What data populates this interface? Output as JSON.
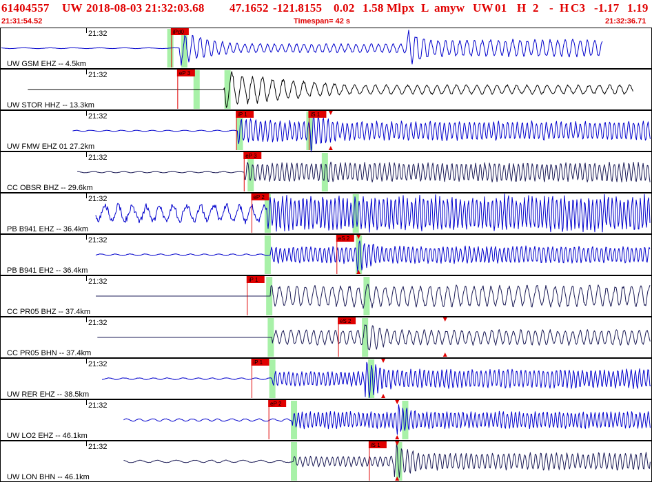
{
  "header": {
    "event_id": "61404557",
    "network": "UW",
    "datetime": "2018-08-03 21:32:03.68",
    "lat": "47.1652",
    "lon": "-121.8155",
    "depth": "0.02",
    "magnitude": "1.58 Ml",
    "src": "px",
    "type": "L",
    "author": "amyw",
    "auth_net": "UW",
    "ver": "01",
    "gt": "H",
    "nph": "2",
    "dash": "-",
    "sel": "H",
    "qual": "C3",
    "val1": "-1.17",
    "val2": "1.19"
  },
  "subheader": {
    "start_time": "21:31:54.52",
    "timespan": "Timespan=  42 s",
    "end_time": "21:32:36.71"
  },
  "colors": {
    "header": "#e00000",
    "trace_blue": "#0000cc",
    "trace_dark": "#1a1a55",
    "trace_black": "#000000",
    "pick_box": "#e00000",
    "window": "#9ef09e",
    "tick": "#e00000"
  },
  "chart_data": {
    "type": "line",
    "title": "",
    "xlabel": "",
    "ylabel": "",
    "xlim": [
      0,
      42.19
    ],
    "x_unit": "s after 21:31:54.52",
    "tick_label": "21:32",
    "traces": [
      {
        "label": "UW GSM EHZ -- 4.5km",
        "time_label": "21:32",
        "color": "#0000cc",
        "start": 0.0,
        "end": 39.0,
        "onset": 11.6,
        "amp": 0.85,
        "freq": 1.3,
        "decay": 0.25,
        "noise": 0.02,
        "secondary": 26.3,
        "sec_amp": 0.9,
        "picks": [
          {
            "label": "iPd0",
            "t": 11.1
          }
        ],
        "windows": [
          11.0,
          11.9
        ],
        "ticks": []
      },
      {
        "label": "UW STOR HHZ -- 13.3km",
        "time_label": "21:32",
        "color": "#000000",
        "start": 1.8,
        "end": 41.0,
        "onset": 14.5,
        "amp": 0.9,
        "freq": 0.95,
        "decay": 0.12,
        "noise": 0.0,
        "secondary": 0,
        "sec_amp": 0,
        "picks": [
          {
            "label": "eP 3",
            "t": 11.5
          }
        ],
        "windows": [
          12.7,
          14.7
        ],
        "ticks": []
      },
      {
        "label": "UW FMW EHZ 01 27.2km",
        "time_label": "21:32",
        "color": "#0000cc",
        "start": 4.7,
        "end": 43.7,
        "onset": 15.4,
        "amp": 0.6,
        "freq": 2.0,
        "decay": 0.04,
        "noise": 0.03,
        "secondary": 20.1,
        "sec_amp": 1.0,
        "picks": [
          {
            "label": "iP 1",
            "t": 15.3
          },
          {
            "label": "iS 1",
            "t": 20.0
          }
        ],
        "windows": [
          15.5,
          20.0
        ],
        "ticks": [
          21.4
        ]
      },
      {
        "label": "CC OBSR BHZ -- 29.6km",
        "time_label": "21:32",
        "color": "#1a1a55",
        "start": 5.0,
        "end": 44.0,
        "onset": 15.8,
        "amp": 0.45,
        "freq": 2.0,
        "decay": 0.0,
        "noise": 0.03,
        "secondary": 21.2,
        "sec_amp": 0.6,
        "picks": [
          {
            "label": "eP 3",
            "t": 15.8
          }
        ],
        "windows": [
          16.2,
          21.0
        ],
        "ticks": []
      },
      {
        "label": "PB B941 EHZ -- 36.4km",
        "time_label": "21:32",
        "color": "#0000cc",
        "start": 6.2,
        "end": 45.5,
        "onset": 17.3,
        "amp": 0.8,
        "freq": 2.4,
        "decay": 0.0,
        "noise": 0.4,
        "secondary": 23.0,
        "sec_amp": 0.8,
        "picks": [
          {
            "label": "eP 2",
            "t": 16.3
          }
        ],
        "windows": [
          17.3,
          23.0
        ],
        "ticks": []
      },
      {
        "label": "PB B941 EH2 -- 36.4km",
        "time_label": "21:32",
        "color": "#0000cc",
        "start": 6.2,
        "end": 45.5,
        "onset": 17.5,
        "amp": 0.4,
        "freq": 2.2,
        "decay": 0.0,
        "noise": 0.04,
        "secondary": 23.1,
        "sec_amp": 0.9,
        "picks": [
          {
            "label": "eS 2",
            "t": 21.8
          }
        ],
        "windows": [
          17.3,
          23.2
        ],
        "ticks": [
          23.2
        ]
      },
      {
        "label": "CC PR05 BHZ -- 37.4km",
        "time_label": "21:32",
        "color": "#1a1a55",
        "start": 6.2,
        "end": 45.5,
        "onset": 17.5,
        "amp": 0.5,
        "freq": 1.1,
        "decay": 0.0,
        "noise": 0.0,
        "secondary": 23.5,
        "sec_amp": 0.7,
        "picks": [
          {
            "label": "iP 1",
            "t": 16.0
          }
        ],
        "windows": [
          17.4,
          23.7
        ],
        "ticks": []
      },
      {
        "label": "CC PR05 BHN -- 37.4km",
        "time_label": "21:32",
        "color": "#1a1a55",
        "start": 6.3,
        "end": 45.5,
        "onset": 17.6,
        "amp": 0.35,
        "freq": 1.3,
        "decay": 0.0,
        "noise": 0.0,
        "secondary": 23.5,
        "sec_amp": 0.8,
        "picks": [
          {
            "label": "eS 2",
            "t": 21.9
          }
        ],
        "windows": [
          17.5,
          23.6
        ],
        "ticks": [
          28.8
        ]
      },
      {
        "label": "UW RER EHZ -- 38.5km",
        "time_label": "21:32",
        "color": "#0000cc",
        "start": 6.6,
        "end": 45.0,
        "onset": 17.6,
        "amp": 0.35,
        "freq": 2.2,
        "decay": 0.0,
        "noise": 0.04,
        "secondary": 23.6,
        "sec_amp": 1.0,
        "picks": [
          {
            "label": "iP 1",
            "t": 16.3
          }
        ],
        "windows": [
          17.6,
          24.0
        ],
        "ticks": [
          24.8
        ]
      },
      {
        "label": "UW LO2 EHZ -- 46.1km",
        "time_label": "21:32",
        "color": "#0000cc",
        "start": 8.0,
        "end": 47.0,
        "onset": 18.9,
        "amp": 0.4,
        "freq": 2.4,
        "decay": 0.0,
        "noise": 0.06,
        "secondary": 25.7,
        "sec_amp": 0.8,
        "picks": [
          {
            "label": "eP 2",
            "t": 17.4
          }
        ],
        "windows": [
          19.0,
          26.2
        ],
        "ticks": [
          25.7
        ]
      },
      {
        "label": "UW LON BHN -- 46.1km",
        "time_label": "21:32",
        "color": "#1a1a55",
        "start": 8.0,
        "end": 47.0,
        "onset": 19.0,
        "amp": 0.25,
        "freq": 1.8,
        "decay": 0.0,
        "noise": 0.06,
        "secondary": 25.5,
        "sec_amp": 0.9,
        "picks": [
          {
            "label": "iS 1",
            "t": 23.9
          }
        ],
        "windows": [
          19.0,
          25.8
        ],
        "ticks": [
          25.7
        ]
      }
    ]
  }
}
